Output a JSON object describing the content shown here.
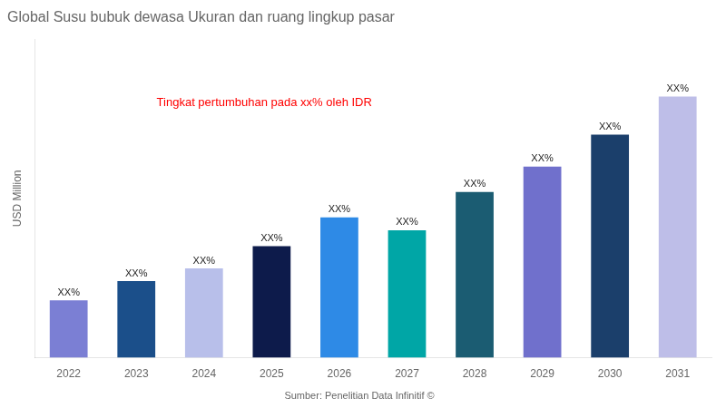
{
  "chart_data": {
    "type": "bar",
    "title": "Global Susu bubuk dewasa Ukuran dan ruang lingkup pasar",
    "ylabel": "USD Million",
    "source": "Sumber: Penelitian Data Infinitif ©",
    "annotations": [
      {
        "text": "Tingkat pertumbuhan pada xx% oleh IDR",
        "color": "#FF0000"
      }
    ],
    "categories": [
      "2022",
      "2023",
      "2024",
      "2025",
      "2026",
      "2027",
      "2028",
      "2029",
      "2030",
      "2031"
    ],
    "values": [
      18,
      24,
      28,
      35,
      44,
      40,
      52,
      60,
      70,
      82
    ],
    "value_labels": [
      "XX%",
      "XX%",
      "XX%",
      "XX%",
      "XX%",
      "XX%",
      "XX%",
      "XX%",
      "XX%",
      "XX%"
    ],
    "colors": [
      "#7B7FD4",
      "#1B4F8A",
      "#B8BFEA",
      "#0D1B4B",
      "#2E8AE6",
      "#00A6A6",
      "#1B5C72",
      "#7070CC",
      "#1B3F6B",
      "#BEBEE8"
    ],
    "ylim": [
      0,
      100
    ],
    "grid": false,
    "tick_labels": "x"
  }
}
